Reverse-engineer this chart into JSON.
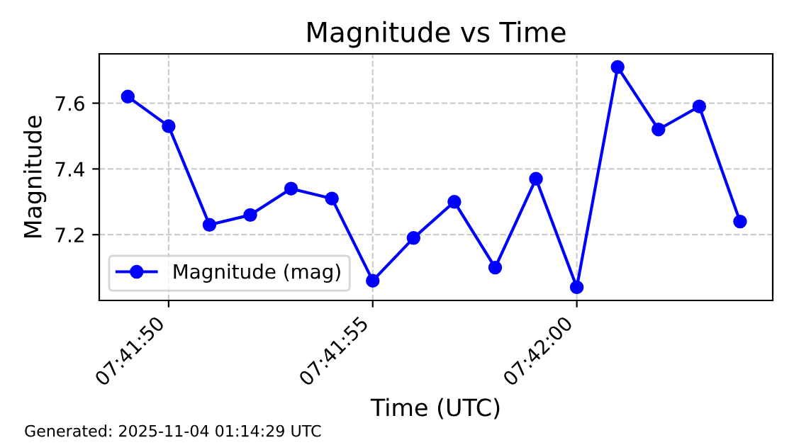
{
  "chart_data": {
    "type": "line",
    "title": "Magnitude vs Time",
    "xlabel": "Time (UTC)",
    "ylabel": "Magnitude",
    "x": [
      "2025-11-04T07:41:49",
      "2025-11-04T07:41:50",
      "2025-11-04T07:41:51",
      "2025-11-04T07:41:52",
      "2025-11-04T07:41:53",
      "2025-11-04T07:41:54",
      "2025-11-04T07:41:55",
      "2025-11-04T07:41:56",
      "2025-11-04T07:41:57",
      "2025-11-04T07:41:58",
      "2025-11-04T07:41:59",
      "2025-11-04T07:42:00",
      "2025-11-04T07:42:01",
      "2025-11-04T07:42:02",
      "2025-11-04T07:42:03",
      "2025-11-04T07:42:04"
    ],
    "series": [
      {
        "name": "Magnitude (mag)",
        "color": "#0000ff",
        "values": [
          7.62,
          7.53,
          7.23,
          7.26,
          7.34,
          7.31,
          7.06,
          7.19,
          7.3,
          7.1,
          7.37,
          7.04,
          7.71,
          7.52,
          7.59,
          7.24
        ]
      }
    ],
    "xlim": [
      "2025-11-04T07:41:48.3",
      "2025-11-04T07:42:04.8"
    ],
    "xticks": [
      {
        "value": "2025-11-04T07:41:50",
        "label": "07:41:50"
      },
      {
        "value": "2025-11-04T07:41:55",
        "label": "07:41:55"
      },
      {
        "value": "2025-11-04T07:42:00",
        "label": "07:42:00"
      }
    ],
    "ylim": [
      7.0,
      7.75
    ],
    "yticks": [
      {
        "value": 7.2,
        "label": "7.2"
      },
      {
        "value": 7.4,
        "label": "7.4"
      },
      {
        "value": 7.6,
        "label": "7.6"
      }
    ],
    "grid": true,
    "line_style": "solid",
    "marker": "circle",
    "legend": "bottom left",
    "annotations": [
      "Generated: 2025-11-04 01:14:29 UTC"
    ]
  }
}
